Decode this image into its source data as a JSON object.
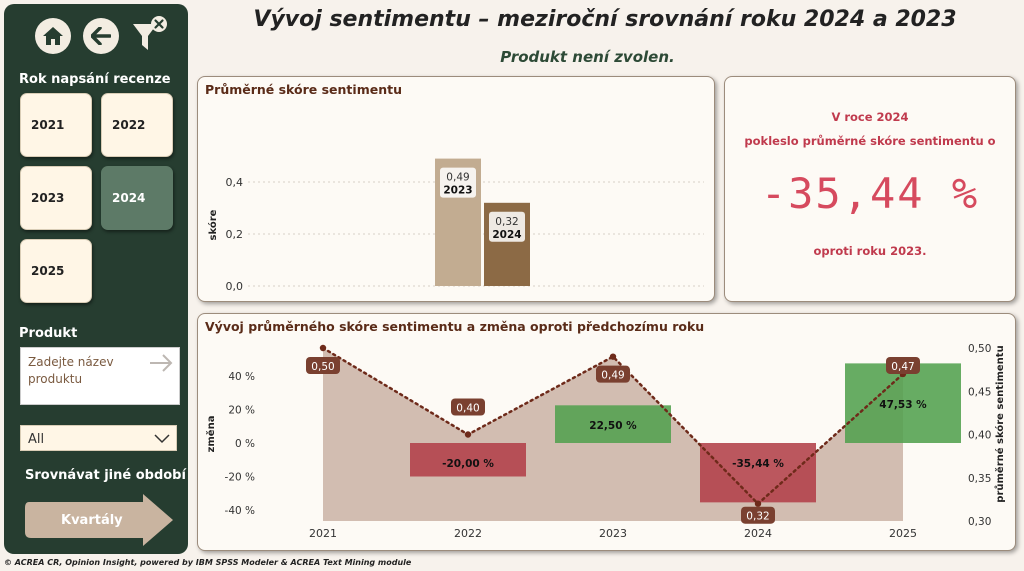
{
  "title": "Vývoj sentimentu – meziroční srovnání roku 2024 a 2023",
  "subtitle": "Produkt není zvolen.",
  "sidebar": {
    "year_heading": "Rok napsání recenze",
    "years": [
      {
        "label": "2021",
        "selected": false
      },
      {
        "label": "2022",
        "selected": false
      },
      {
        "label": "2023",
        "selected": false
      },
      {
        "label": "2024",
        "selected": true
      },
      {
        "label": "2025",
        "selected": false
      }
    ],
    "product_heading": "Produkt",
    "product_placeholder": "Zadejte název produktu",
    "dropdown_value": "All",
    "compare_label": "Srovnávat jiné období",
    "quarterly_button": "Kvartály"
  },
  "kpi": {
    "line1": "V roce 2024",
    "line2": "pokleslo průměrné skóre sentimentu o",
    "value": "-35,44 %",
    "line3": "oproti roku 2023."
  },
  "footer": "© ACREA CR, Opinion Insight, powered by IBM SPSS Modeler & ACREA Text Mining module",
  "colors": {
    "sidebar": "#263d30",
    "bar_2023": "#c2ac91",
    "bar_2024": "#8c6a45",
    "area": "#c3a89a",
    "negative": "#b24049",
    "positive": "#52a04e",
    "kpi_text": "#c03a4d"
  },
  "chart_data": [
    {
      "type": "bar",
      "title": "Průměrné skóre sentimentu",
      "ylabel": "skóre",
      "ylim": [
        0,
        0.5
      ],
      "yticks": [
        "0,0",
        "0,2",
        "0,4"
      ],
      "categories": [
        "2023",
        "2024"
      ],
      "values": [
        0.49,
        0.32
      ],
      "value_labels": [
        "0,49",
        "0,32"
      ]
    },
    {
      "type": "line",
      "title": "Vývoj průměrného skóre sentimentu a změna oproti předchozímu roku",
      "categories": [
        "2021",
        "2022",
        "2023",
        "2024",
        "2025"
      ],
      "y_left_label": "změna",
      "y_left_ticks": [
        "40 %",
        "20 %",
        "0 %",
        "-20 %",
        "-40 %"
      ],
      "y_right_label": "průměrné skóre sentimentu",
      "y_right_ticks": [
        "0,50",
        "0,45",
        "0,40",
        "0,35",
        "0,30"
      ],
      "y_right_lim": [
        0.3,
        0.5
      ],
      "score": [
        0.5,
        0.4,
        0.49,
        0.32,
        0.47
      ],
      "score_labels": [
        "0,50",
        "0,40",
        "0,49",
        "0,32",
        "0,47"
      ],
      "change": [
        null,
        -20.0,
        22.5,
        -35.44,
        47.53
      ],
      "change_labels": [
        "",
        "-20,00 %",
        "22,50 %",
        "-35,44 %",
        "47,53 %"
      ]
    }
  ]
}
